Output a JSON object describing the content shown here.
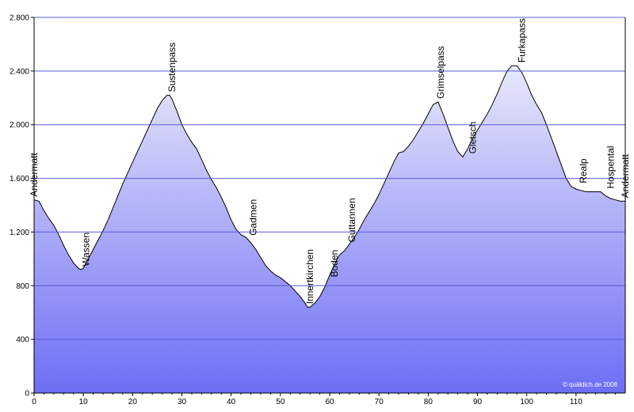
{
  "chart_data": {
    "type": "area",
    "title": "",
    "xlabel": "",
    "ylabel": "",
    "xlim": [
      0,
      120
    ],
    "ylim": [
      0,
      2800
    ],
    "x_ticks": [
      0,
      10,
      20,
      30,
      40,
      50,
      60,
      70,
      80,
      90,
      100,
      110
    ],
    "x_tick_labels": [
      "0",
      "10",
      "20",
      "30",
      "40",
      "50",
      "60",
      "70",
      "80",
      "90",
      "100",
      "110"
    ],
    "y_ticks": [
      0,
      400,
      800,
      1200,
      1600,
      2000,
      2400,
      2800
    ],
    "y_tick_labels": [
      "0",
      "400",
      "800",
      "1.200",
      "1.600",
      "2.000",
      "2.400",
      "2.800"
    ],
    "grid": "horizontal",
    "colors": {
      "fill_top": "#e8e8fb",
      "fill_bottom": "#6e6ef5",
      "grid": "#5a5ad8",
      "outline": "#000000",
      "axis": "#000000"
    },
    "series": [
      {
        "x": [
          0,
          1,
          2,
          3,
          4,
          5,
          6,
          7,
          8,
          9,
          9.5,
          10,
          11,
          12,
          13,
          14,
          15,
          16,
          17,
          18,
          19,
          20,
          21,
          22,
          23,
          24,
          25,
          26,
          27,
          27.5,
          28,
          29,
          30,
          31,
          32,
          33,
          34,
          35,
          36,
          37,
          38,
          39,
          40,
          41,
          42,
          43,
          44,
          45,
          46,
          47,
          48,
          49,
          50,
          51,
          52,
          53,
          54,
          55,
          55.5,
          56,
          57,
          58,
          59,
          60,
          61,
          62,
          63,
          64,
          65,
          66,
          67,
          68,
          69,
          70,
          71,
          72,
          73,
          74,
          75,
          76,
          77,
          78,
          79,
          80,
          81,
          82,
          83,
          84,
          85,
          86,
          87,
          88,
          89,
          90,
          91,
          92,
          93,
          94,
          95,
          96,
          97,
          98,
          99,
          100,
          101,
          102,
          103,
          104,
          105,
          106,
          107,
          108,
          109,
          110,
          111,
          112,
          113,
          114,
          115,
          116,
          117,
          118,
          119
        ],
        "values": [
          1440,
          1430,
          1360,
          1300,
          1250,
          1180,
          1100,
          1030,
          970,
          930,
          920,
          930,
          1000,
          1070,
          1140,
          1210,
          1290,
          1380,
          1470,
          1560,
          1640,
          1720,
          1800,
          1880,
          1960,
          2040,
          2120,
          2180,
          2220,
          2220,
          2190,
          2100,
          2000,
          1930,
          1870,
          1820,
          1740,
          1660,
          1590,
          1530,
          1460,
          1380,
          1290,
          1220,
          1180,
          1160,
          1120,
          1070,
          1010,
          950,
          910,
          880,
          860,
          830,
          800,
          760,
          720,
          670,
          640,
          640,
          670,
          720,
          790,
          880,
          960,
          1030,
          1060,
          1110,
          1160,
          1220,
          1290,
          1350,
          1410,
          1480,
          1560,
          1640,
          1720,
          1790,
          1800,
          1840,
          1890,
          1950,
          2010,
          2080,
          2150,
          2170,
          2080,
          1980,
          1880,
          1800,
          1760,
          1820,
          1900,
          1960,
          2020,
          2080,
          2150,
          2230,
          2320,
          2400,
          2440,
          2440,
          2390,
          2310,
          2220,
          2150,
          2090,
          2000,
          1900,
          1800,
          1700,
          1600,
          1540,
          1520,
          1510,
          1500,
          1500,
          1500,
          1500,
          1470,
          1450,
          1440,
          1430
        ]
      }
    ],
    "annotations": [
      {
        "text": "Andermatt",
        "x": 0,
        "y": 1440
      },
      {
        "text": "Wassen",
        "x": 10.5,
        "y": 920
      },
      {
        "text": "Sustenpass",
        "x": 28,
        "y": 2220
      },
      {
        "text": "Gadmen",
        "x": 44.5,
        "y": 1150
      },
      {
        "text": "Innertkirchen",
        "x": 56,
        "y": 640
      },
      {
        "text": "Boden",
        "x": 61,
        "y": 840
      },
      {
        "text": "Guttannen",
        "x": 64.5,
        "y": 1100
      },
      {
        "text": "Grimselpass",
        "x": 82.5,
        "y": 2170
      },
      {
        "text": "Gletsch",
        "x": 89,
        "y": 1760
      },
      {
        "text": "Furkapass",
        "x": 99,
        "y": 2440
      },
      {
        "text": "Realp",
        "x": 111.5,
        "y": 1540
      },
      {
        "text": "Hospental",
        "x": 117,
        "y": 1500
      },
      {
        "text": "Andermatt",
        "x": 120,
        "y": 1430
      }
    ],
    "copyright": "© quäldich.de 2008"
  }
}
